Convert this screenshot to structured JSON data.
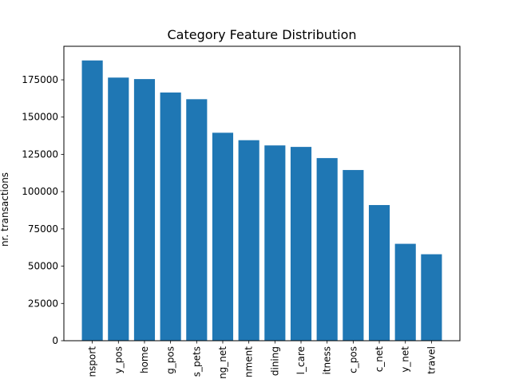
{
  "chart_data": {
    "type": "bar",
    "title": "Category Feature Distribution",
    "xlabel": "",
    "ylabel": "nr. transactions",
    "ylim": [
      0,
      197500
    ],
    "yticks": [
      0,
      25000,
      50000,
      75000,
      100000,
      125000,
      150000,
      175000
    ],
    "grid": false,
    "legend": "none",
    "bar_color": "#1f77b4",
    "categories": [
      "gas_transport",
      "grocery_pos",
      "home",
      "shopping_pos",
      "kids_pets",
      "shopping_net",
      "entertainment",
      "food_dining",
      "personal_care",
      "health_fitness",
      "misc_pos",
      "misc_net",
      "grocery_net",
      "travel"
    ],
    "tick_labels_visible": [
      "nsport",
      "y_pos",
      "home",
      "g_pos",
      "s_pets",
      "ng_net",
      "nment",
      "dining",
      "l_care",
      "itness",
      "c_pos",
      "c_net",
      "y_net",
      "travel"
    ],
    "values": [
      188000,
      176500,
      175500,
      166500,
      162000,
      139500,
      134500,
      131000,
      130000,
      122500,
      114500,
      91000,
      65000,
      58000
    ]
  }
}
